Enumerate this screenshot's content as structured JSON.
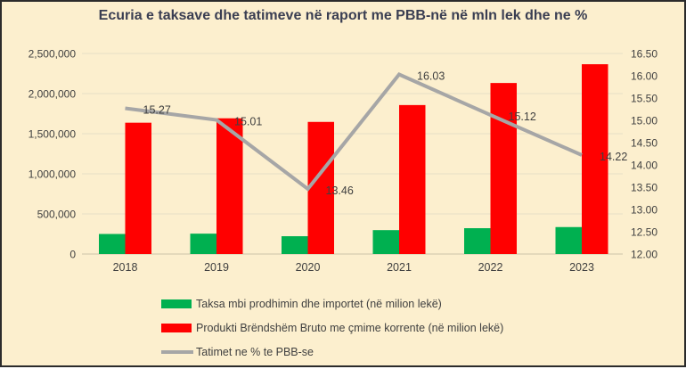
{
  "chart_data": {
    "type": "combo-bar-line",
    "title": "Ecuria e taksave dhe tatimeve në raport me PBB-në në mln lek dhe ne %",
    "categories": [
      "2018",
      "2019",
      "2020",
      "2021",
      "2022",
      "2023"
    ],
    "series": [
      {
        "name": "Taksa mbi prodhimin dhe importet (në milion lekë)",
        "type": "bar",
        "axis": "left",
        "color": "#00B050",
        "values": [
          250000,
          254000,
          222000,
          298000,
          322000,
          336000
        ]
      },
      {
        "name": "Produkti Brëndshëm Bruto me çmime korrente (në milion lekë)",
        "type": "bar",
        "axis": "left",
        "color": "#FF0000",
        "values": [
          1637000,
          1692000,
          1647000,
          1857000,
          2132000,
          2366000
        ]
      },
      {
        "name": "Tatimet ne % te PBB-se",
        "type": "line",
        "axis": "right",
        "color": "#A6A6A6",
        "values": [
          15.27,
          15.01,
          13.46,
          16.03,
          15.12,
          14.22
        ],
        "data_labels": [
          "15.27",
          "15.01",
          "13.46",
          "16.03",
          "15.12",
          "14.22"
        ]
      }
    ],
    "left_axis": {
      "min": 0,
      "max": 2500000,
      "step": 500000,
      "tick_labels": [
        "0",
        "500,000",
        "1,000,000",
        "1,500,000",
        "2,000,000",
        "2,500,000"
      ]
    },
    "right_axis": {
      "min": 12,
      "max": 16.5,
      "step": 0.5,
      "tick_labels": [
        "12.00",
        "12.50",
        "13.00",
        "13.50",
        "14.00",
        "14.50",
        "15.00",
        "15.50",
        "16.00",
        "16.50"
      ]
    },
    "grid": true,
    "legend_position": "bottom-left",
    "colors": {
      "background": "#FCEFCE",
      "border": "#2B2B2B",
      "gridline": "#EAE2C8",
      "axis_line": "#D5CCB0",
      "text": "#404040",
      "title": "#3A3E52"
    }
  }
}
